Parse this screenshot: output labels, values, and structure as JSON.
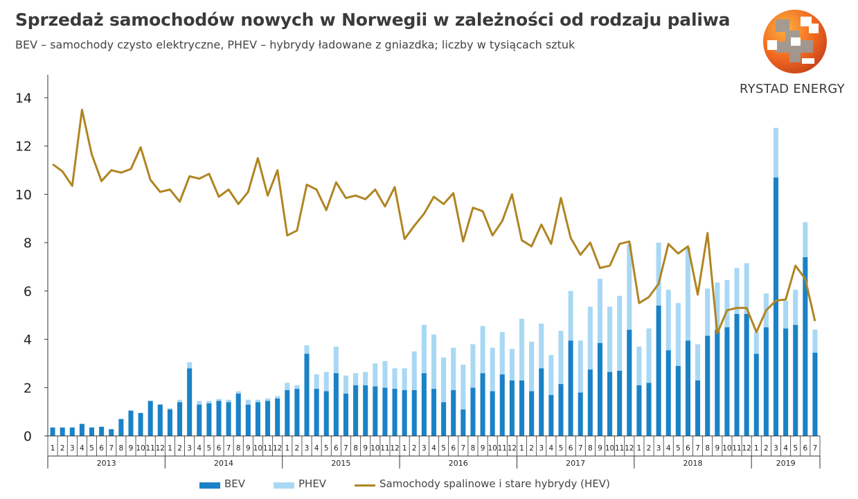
{
  "header": {
    "title": "Sprzedaż samochodów nowych w Norwegii w zależności od rodzaju paliwa",
    "subtitle": "BEV – samochody czysto elektryczne, PHEV – hybrydy ładowane z gniazdka; liczby w tysiącach sztuk"
  },
  "logo": {
    "text": "RYSTAD ENERGY",
    "icon": "rystad-globe-icon"
  },
  "colors": {
    "bev": "#1a82c6",
    "phev": "#a9d8f4",
    "hev": "#b08421",
    "axis": "#333333",
    "text": "#222222"
  },
  "legend": {
    "bev": "BEV",
    "phev": "PHEV",
    "hev": "Samochody spalinowe i stare hybrydy (HEV)"
  },
  "chart_data": {
    "type": "bar",
    "stacked": true,
    "ylim": [
      0,
      14
    ],
    "yticks": [
      0,
      2,
      4,
      6,
      8,
      10,
      12,
      14
    ],
    "grid": false,
    "legend_position": "bottom",
    "groups": [
      {
        "label": "2013",
        "months": [
          "1",
          "2",
          "3",
          "4",
          "5",
          "6",
          "7",
          "8",
          "9",
          "10",
          "11",
          "12"
        ]
      },
      {
        "label": "2014",
        "months": [
          "1",
          "2",
          "3",
          "4",
          "5",
          "6",
          "7",
          "8",
          "9",
          "10",
          "11",
          "12"
        ]
      },
      {
        "label": "2015",
        "months": [
          "1",
          "2",
          "3",
          "4",
          "5",
          "6",
          "7",
          "8",
          "9",
          "10",
          "11",
          "12"
        ]
      },
      {
        "label": "2016",
        "months": [
          "1",
          "2",
          "3",
          "4",
          "5",
          "6",
          "7",
          "8",
          "9",
          "10",
          "11",
          "12"
        ]
      },
      {
        "label": "2017",
        "months": [
          "1",
          "2",
          "3",
          "4",
          "5",
          "6",
          "7",
          "8",
          "9",
          "10",
          "11",
          "12"
        ]
      },
      {
        "label": "2018",
        "months": [
          "1",
          "2",
          "3",
          "4",
          "5",
          "6",
          "7",
          "8",
          "9",
          "10",
          "11",
          "12"
        ]
      },
      {
        "label": "2019",
        "months": [
          "1",
          "2",
          "3",
          "4",
          "5",
          "6",
          "7"
        ]
      }
    ],
    "series": [
      {
        "name": "BEV",
        "kind": "bar",
        "values": [
          0.35,
          0.35,
          0.35,
          0.5,
          0.35,
          0.38,
          0.28,
          0.7,
          1.05,
          0.95,
          1.45,
          1.3,
          1.1,
          1.4,
          2.8,
          1.3,
          1.35,
          1.45,
          1.4,
          1.75,
          1.3,
          1.4,
          1.45,
          1.55,
          1.9,
          1.95,
          3.4,
          1.95,
          1.85,
          2.6,
          1.75,
          2.1,
          2.1,
          2.05,
          2.0,
          1.95,
          1.9,
          1.9,
          2.6,
          1.95,
          1.4,
          1.9,
          1.1,
          2.0,
          2.6,
          1.85,
          2.55,
          2.3,
          2.3,
          1.85,
          2.8,
          1.7,
          2.15,
          3.95,
          1.8,
          2.75,
          3.85,
          2.65,
          2.7,
          4.4,
          2.1,
          2.2,
          5.4,
          3.55,
          2.9,
          3.95,
          2.3,
          4.15,
          4.4,
          4.5,
          5.05,
          5.05,
          3.4,
          4.5,
          10.7,
          4.45,
          4.6,
          7.4,
          3.45
        ]
      },
      {
        "name": "PHEV",
        "kind": "bar",
        "values": [
          0,
          0,
          0,
          0,
          0,
          0,
          0,
          0,
          0,
          0,
          0,
          0,
          0.05,
          0.1,
          0.25,
          0.15,
          0.1,
          0.08,
          0.1,
          0.1,
          0.2,
          0.1,
          0.1,
          0.1,
          0.3,
          0.15,
          0.35,
          0.6,
          0.8,
          1.1,
          0.75,
          0.5,
          0.55,
          0.95,
          1.1,
          0.85,
          0.9,
          1.6,
          2.0,
          2.25,
          1.85,
          1.75,
          1.85,
          1.8,
          1.95,
          1.8,
          1.75,
          1.3,
          2.55,
          2.05,
          1.85,
          1.65,
          2.2,
          2.05,
          2.15,
          2.6,
          2.65,
          2.7,
          3.1,
          3.55,
          1.6,
          2.25,
          2.6,
          2.5,
          2.6,
          3.85,
          1.5,
          1.95,
          1.95,
          1.95,
          1.9,
          2.1,
          0.9,
          1.4,
          2.05,
          1.15,
          1.45,
          1.45,
          0.95
        ]
      },
      {
        "name": "Samochody spalinowe i stare hybrydy (HEV)",
        "kind": "line",
        "values": [
          11.25,
          10.95,
          10.35,
          13.5,
          11.65,
          10.55,
          11.0,
          10.9,
          11.05,
          11.95,
          10.6,
          10.1,
          10.2,
          9.7,
          10.75,
          10.65,
          10.85,
          9.9,
          10.2,
          9.6,
          10.1,
          11.5,
          9.95,
          11.0,
          8.3,
          8.5,
          10.4,
          10.2,
          9.35,
          10.5,
          9.85,
          9.95,
          9.8,
          10.2,
          9.5,
          10.3,
          8.15,
          8.7,
          9.2,
          9.9,
          9.6,
          10.05,
          8.05,
          9.45,
          9.3,
          8.3,
          8.9,
          10.0,
          8.1,
          7.85,
          8.75,
          7.95,
          9.85,
          8.2,
          7.5,
          8.0,
          6.95,
          7.05,
          7.95,
          8.05,
          5.5,
          5.75,
          6.3,
          7.95,
          7.55,
          7.85,
          5.85,
          8.4,
          4.25,
          5.2,
          5.3,
          5.3,
          4.3,
          5.2,
          5.6,
          5.65,
          7.05,
          6.5,
          4.75
        ]
      }
    ]
  }
}
